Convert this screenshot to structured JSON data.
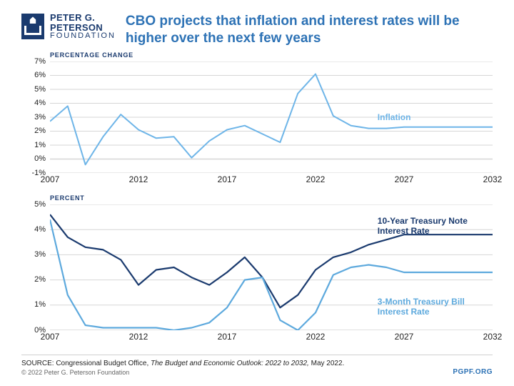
{
  "logo": {
    "line1": "PETER G.",
    "line2": "PETERSON",
    "line3": "FOUNDATION"
  },
  "title": "CBO projects that inflation and interest rates will be higher over the next few years",
  "chart1": {
    "axis_title": "Percentage Change",
    "ylim": [
      -1,
      7
    ],
    "ytick_step": 1,
    "ysuffix": "%",
    "xlim": [
      2007,
      2032
    ],
    "xticks": [
      2007,
      2012,
      2017,
      2022,
      2027,
      2032
    ],
    "series": [
      {
        "name": "Inflation",
        "color": "#6eb5e8",
        "width": 2,
        "label_x": 2025.5,
        "label_y": 3.3,
        "points": [
          [
            2007,
            2.7
          ],
          [
            2008,
            3.8
          ],
          [
            2009,
            -0.4
          ],
          [
            2010,
            1.6
          ],
          [
            2011,
            3.2
          ],
          [
            2012,
            2.1
          ],
          [
            2013,
            1.5
          ],
          [
            2014,
            1.6
          ],
          [
            2015,
            0.1
          ],
          [
            2016,
            1.3
          ],
          [
            2017,
            2.1
          ],
          [
            2018,
            2.4
          ],
          [
            2019,
            1.8
          ],
          [
            2020,
            1.2
          ],
          [
            2021,
            4.7
          ],
          [
            2022,
            6.1
          ],
          [
            2023,
            3.1
          ],
          [
            2024,
            2.4
          ],
          [
            2025,
            2.2
          ],
          [
            2026,
            2.2
          ],
          [
            2027,
            2.3
          ],
          [
            2028,
            2.3
          ],
          [
            2029,
            2.3
          ],
          [
            2030,
            2.3
          ],
          [
            2031,
            2.3
          ],
          [
            2032,
            2.3
          ]
        ]
      }
    ]
  },
  "chart2": {
    "axis_title": "Percent",
    "ylim": [
      0,
      5
    ],
    "ytick_step": 1,
    "ysuffix": "%",
    "xlim": [
      2007,
      2032
    ],
    "xticks": [
      2007,
      2012,
      2017,
      2022,
      2027,
      2032
    ],
    "series": [
      {
        "name": "10-Year Treasury Note Interest Rate",
        "color": "#1a3a6e",
        "width": 2.2,
        "label_x": 2025.5,
        "label_y": 4.5,
        "points": [
          [
            2007,
            4.6
          ],
          [
            2008,
            3.7
          ],
          [
            2009,
            3.3
          ],
          [
            2010,
            3.2
          ],
          [
            2011,
            2.8
          ],
          [
            2012,
            1.8
          ],
          [
            2013,
            2.4
          ],
          [
            2014,
            2.5
          ],
          [
            2015,
            2.1
          ],
          [
            2016,
            1.8
          ],
          [
            2017,
            2.3
          ],
          [
            2018,
            2.9
          ],
          [
            2019,
            2.1
          ],
          [
            2020,
            0.9
          ],
          [
            2021,
            1.4
          ],
          [
            2022,
            2.4
          ],
          [
            2023,
            2.9
          ],
          [
            2024,
            3.1
          ],
          [
            2025,
            3.4
          ],
          [
            2026,
            3.6
          ],
          [
            2027,
            3.8
          ],
          [
            2028,
            3.8
          ],
          [
            2029,
            3.8
          ],
          [
            2030,
            3.8
          ],
          [
            2031,
            3.8
          ],
          [
            2032,
            3.8
          ]
        ]
      },
      {
        "name": "3-Month Treasury Bill Interest Rate",
        "color": "#5da9dd",
        "width": 2.2,
        "label_x": 2025.5,
        "label_y": 1.3,
        "points": [
          [
            2007,
            4.4
          ],
          [
            2008,
            1.4
          ],
          [
            2009,
            0.2
          ],
          [
            2010,
            0.1
          ],
          [
            2011,
            0.1
          ],
          [
            2012,
            0.1
          ],
          [
            2013,
            0.1
          ],
          [
            2014,
            0.0
          ],
          [
            2015,
            0.1
          ],
          [
            2016,
            0.3
          ],
          [
            2017,
            0.9
          ],
          [
            2018,
            2.0
          ],
          [
            2019,
            2.1
          ],
          [
            2020,
            0.4
          ],
          [
            2021,
            0.0
          ],
          [
            2022,
            0.7
          ],
          [
            2023,
            2.2
          ],
          [
            2024,
            2.5
          ],
          [
            2025,
            2.6
          ],
          [
            2026,
            2.5
          ],
          [
            2027,
            2.3
          ],
          [
            2028,
            2.3
          ],
          [
            2029,
            2.3
          ],
          [
            2030,
            2.3
          ],
          [
            2031,
            2.3
          ],
          [
            2032,
            2.3
          ]
        ]
      }
    ]
  },
  "footer": {
    "source_prefix": "SOURCE: Congressional Budget Office, ",
    "source_ital": "The Budget and Economic Outlook: 2022 to 2032,",
    "source_suffix": " May 2022.",
    "copyright": "© 2022 Peter G. Peterson Foundation",
    "link": "PGPF.ORG"
  }
}
